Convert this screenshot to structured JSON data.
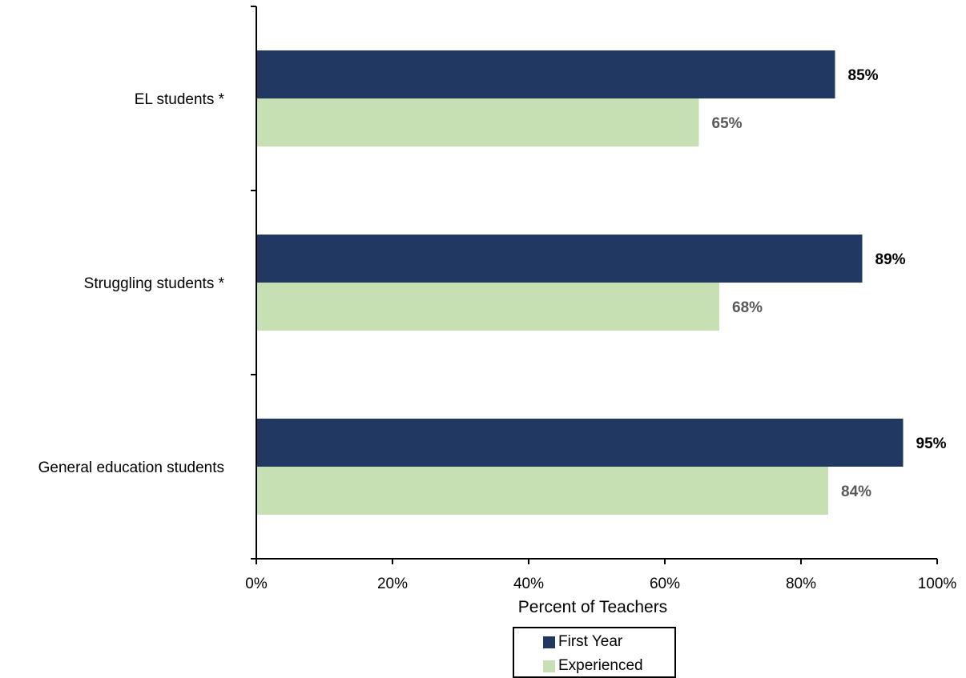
{
  "chart_data": {
    "type": "bar",
    "orientation": "horizontal",
    "categories": [
      "EL students *",
      "Struggling students *",
      "General education students"
    ],
    "series": [
      {
        "name": "First Year",
        "values": [
          85,
          89,
          95
        ],
        "labels": [
          "85%",
          "89%",
          "95%"
        ],
        "color": "#213862",
        "label_color": "#000000"
      },
      {
        "name": "Experienced",
        "values": [
          65,
          68,
          84
        ],
        "labels": [
          "65%",
          "68%",
          "84%"
        ],
        "color": "#c6e0b4",
        "label_color": "#595959"
      }
    ],
    "xlabel": "Percent of Teachers",
    "xlim": [
      0,
      100
    ],
    "xticks": [
      0,
      20,
      40,
      60,
      80,
      100
    ],
    "xtick_labels": [
      "0%",
      "20%",
      "40%",
      "60%",
      "80%",
      "100%"
    ],
    "grid": false,
    "legend_position": "bottom"
  }
}
